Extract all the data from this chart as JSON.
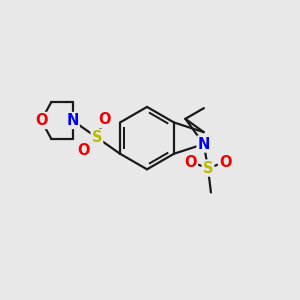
{
  "bg_color": "#e8e8e8",
  "bond_color": "#1a1a1a",
  "bond_width": 1.6,
  "atom_colors": {
    "N": "#0000ee",
    "O": "#ee0000",
    "S": "#bbbb00",
    "C": "#1a1a1a"
  },
  "font_size": 10.5
}
